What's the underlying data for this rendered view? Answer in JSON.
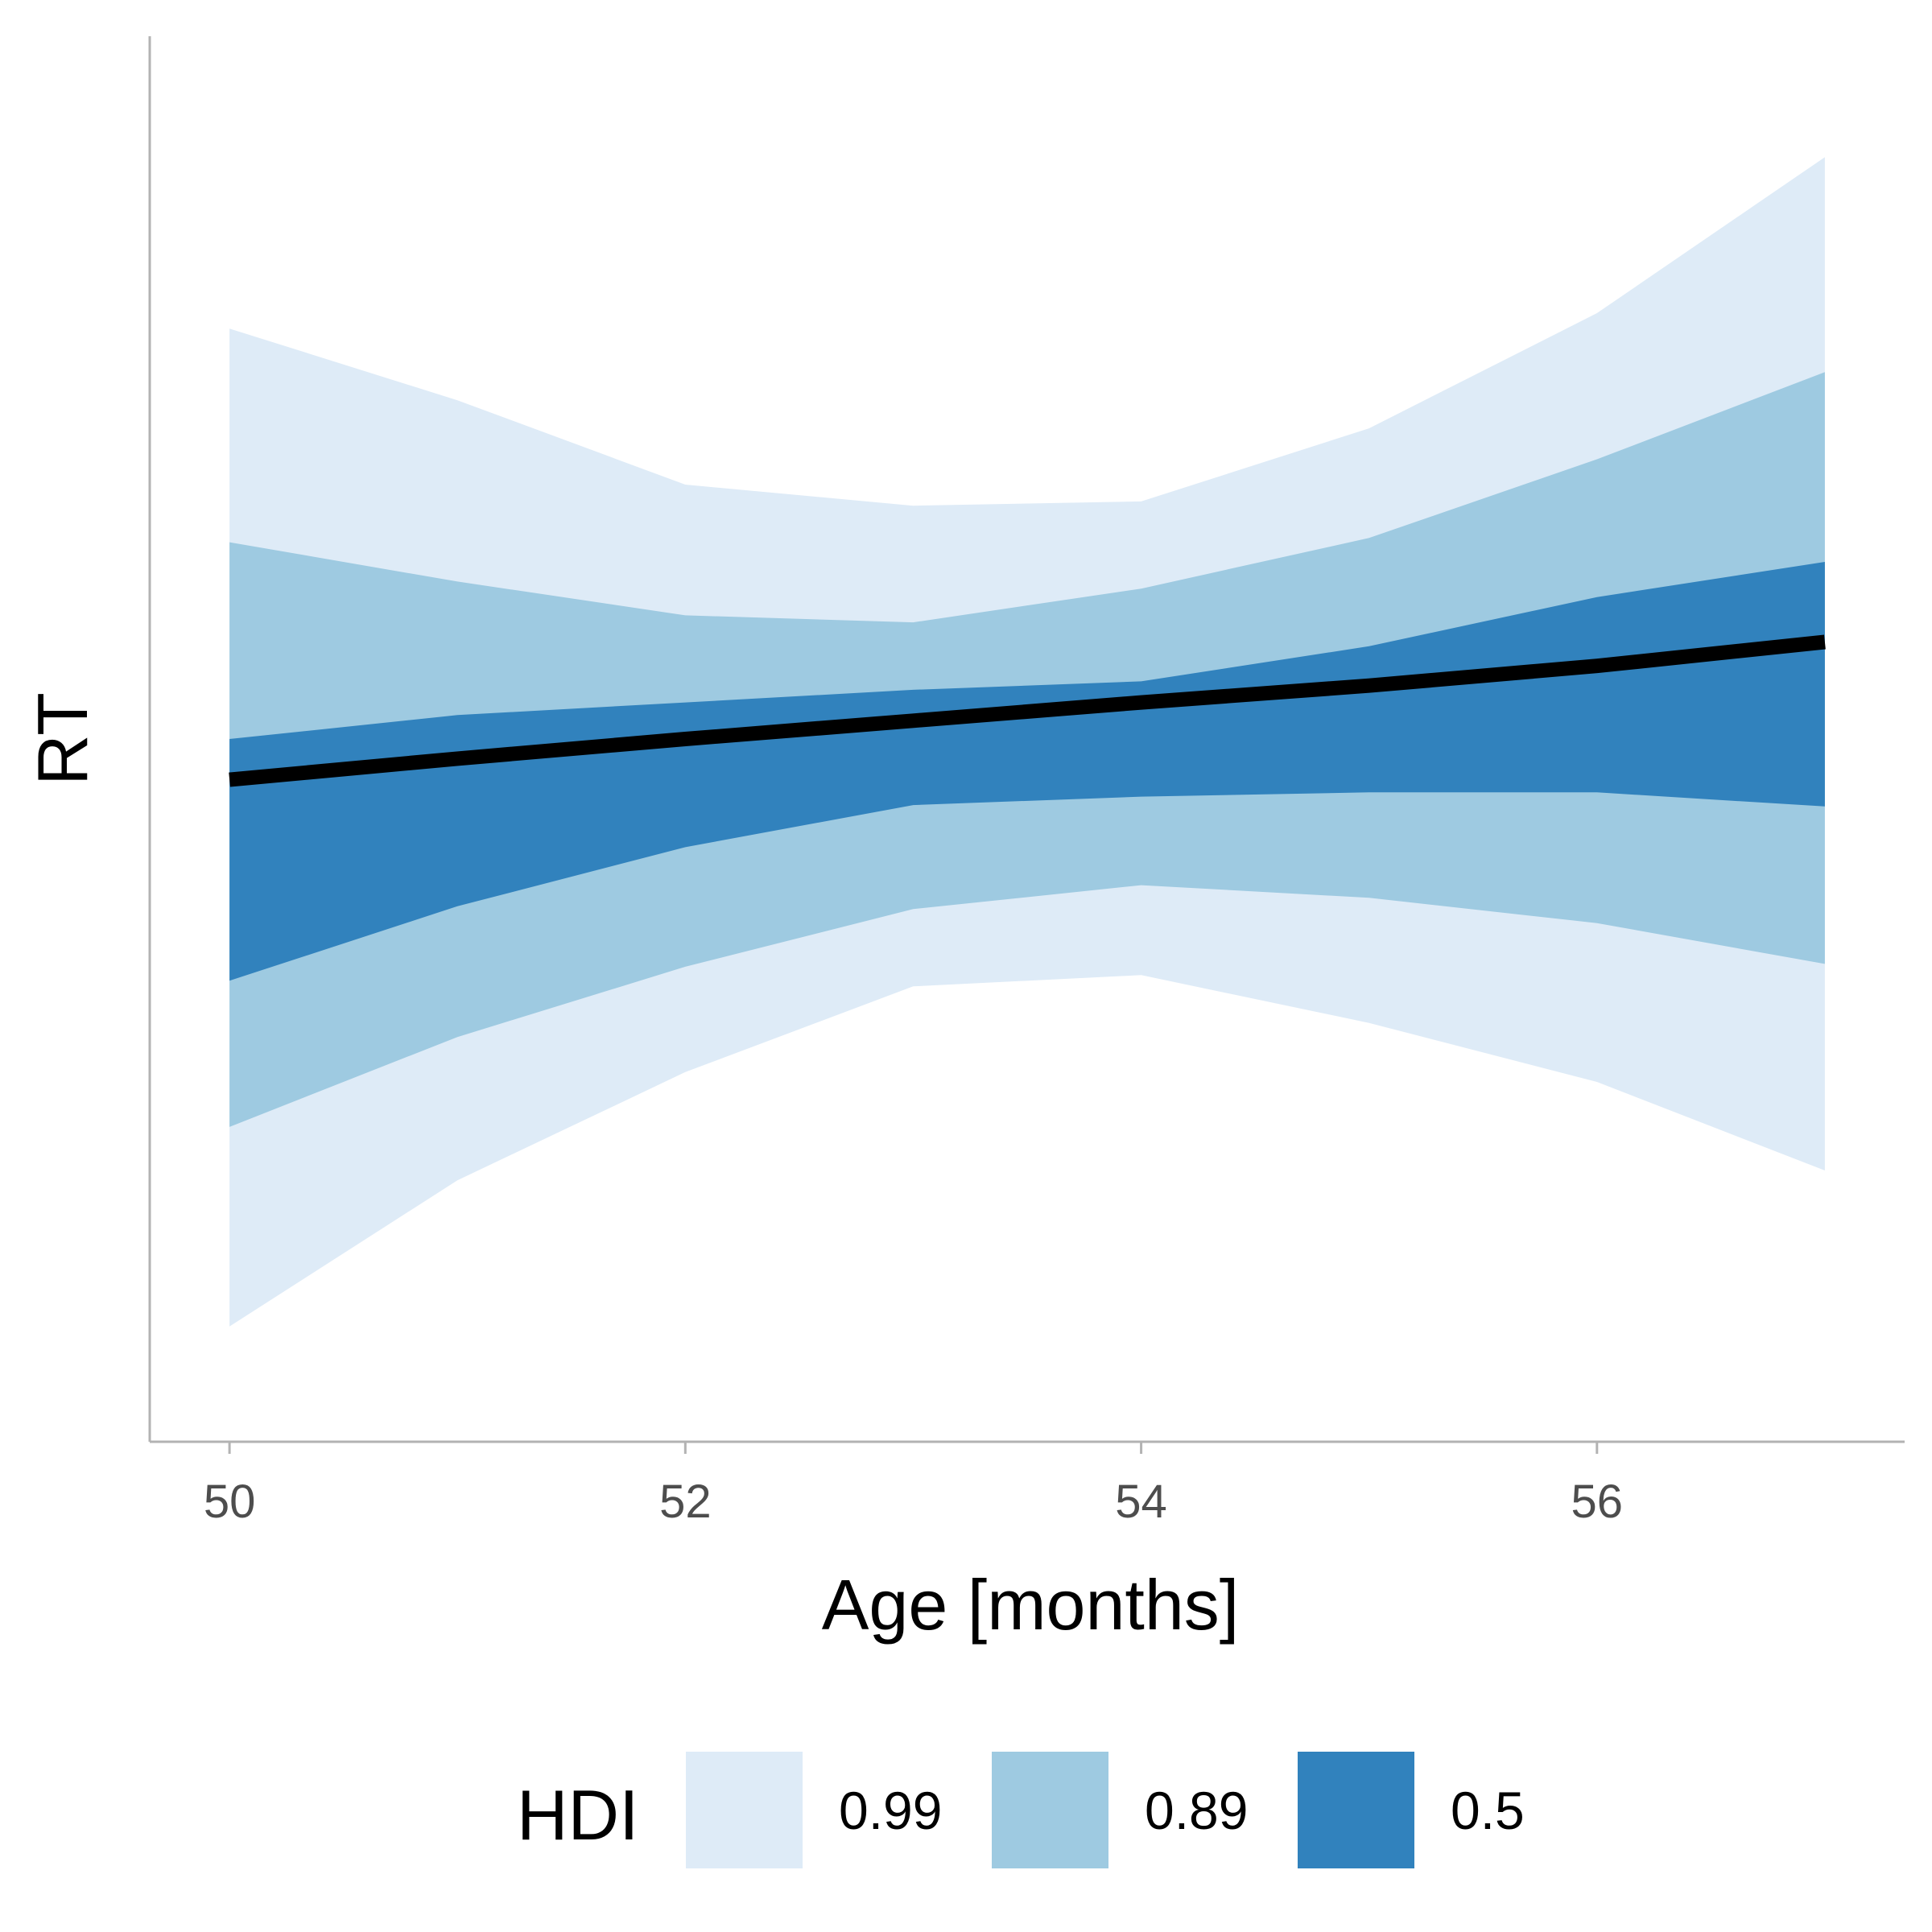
{
  "chart_data": {
    "type": "area",
    "title": "",
    "xlabel": "Age [months]",
    "ylabel": "RT",
    "xlim": [
      49.65,
      57.35
    ],
    "ylim": [
      0,
      100
    ],
    "x": [
      50,
      51,
      52,
      53,
      54,
      55,
      56,
      57
    ],
    "x_ticks": [
      "50",
      "52",
      "54",
      "56"
    ],
    "y_ticks": [],
    "mean_line": [
      47.1,
      48.6,
      50.0,
      51.3,
      52.6,
      53.8,
      55.2,
      56.9
    ],
    "bands": [
      {
        "name": "0.99",
        "color": "#deebf7",
        "lower": [
          8.2,
          18.6,
          26.3,
          32.4,
          33.2,
          29.8,
          25.6,
          19.3
        ],
        "upper": [
          79.2,
          74.1,
          68.1,
          66.6,
          66.9,
          72.1,
          80.3,
          91.4
        ]
      },
      {
        "name": "0.89",
        "color": "#9ecae1",
        "lower": [
          22.4,
          28.8,
          33.8,
          37.9,
          39.6,
          38.7,
          36.9,
          34.0
        ],
        "upper": [
          64.0,
          61.2,
          58.8,
          58.3,
          60.7,
          64.3,
          69.9,
          76.1
        ]
      },
      {
        "name": "0.5",
        "color": "#3182bd",
        "lower": [
          32.8,
          38.1,
          42.3,
          45.3,
          45.9,
          46.2,
          46.2,
          45.2
        ],
        "upper": [
          50.0,
          51.7,
          52.6,
          53.5,
          54.1,
          56.6,
          60.1,
          62.6
        ]
      }
    ],
    "legend": {
      "title": "HDI",
      "position": "bottom",
      "entries": [
        {
          "label": "0.99",
          "color": "#deebf7"
        },
        {
          "label": "0.89",
          "color": "#9ecae1"
        },
        {
          "label": "0.5",
          "color": "#3182bd"
        }
      ]
    },
    "grid": false
  }
}
